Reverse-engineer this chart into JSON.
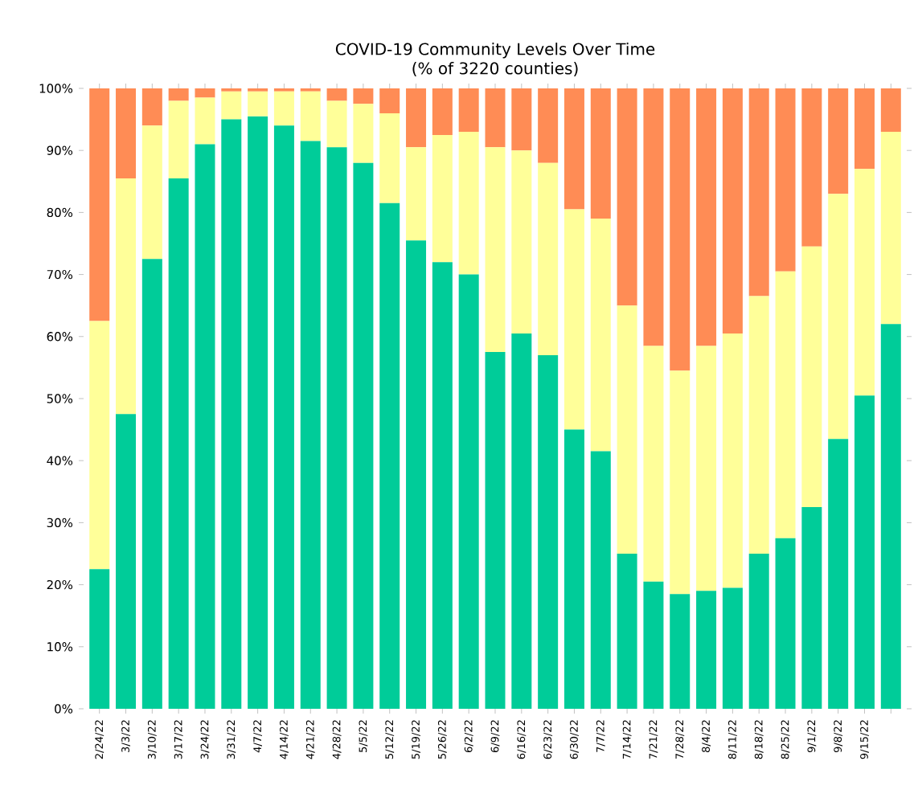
{
  "chart_data": {
    "type": "bar",
    "title": "COVID-19 Community Levels Over Time",
    "subtitle": "(% of 3220 counties)",
    "categories": [
      "2/24/22",
      "3/3/22",
      "3/10/22",
      "3/17/22",
      "3/24/22",
      "3/31/22",
      "4/7/22",
      "4/14/22",
      "4/21/22",
      "4/28/22",
      "5/5/22",
      "5/12/22",
      "5/19/22",
      "5/26/22",
      "6/2/22",
      "6/9/22",
      "6/16/22",
      "6/23/22",
      "6/30/22",
      "7/7/22",
      "7/14/22",
      "7/21/22",
      "7/28/22",
      "8/4/22",
      "8/11/22",
      "8/18/22",
      "8/25/22",
      "9/1/22",
      "9/8/22",
      "9/15/22",
      null
    ],
    "stacked": true,
    "series": [
      {
        "color": "#00cc99",
        "values": [
          22.5,
          47.5,
          72.5,
          85.5,
          91,
          95,
          95.5,
          94,
          91.5,
          90.5,
          88,
          81.5,
          75.5,
          72,
          70,
          57.5,
          60.5,
          57,
          45,
          41.5,
          25,
          20.5,
          18.5,
          19,
          19.5,
          25,
          27.5,
          32.5,
          43.5,
          50.5,
          62
        ]
      },
      {
        "color": "#ffff99",
        "values": [
          40,
          38,
          21.5,
          12.5,
          7.5,
          4.5,
          4,
          5.5,
          8,
          7.5,
          9.5,
          14.5,
          15,
          20.5,
          23,
          33,
          29.5,
          31,
          35.5,
          37.5,
          40,
          38,
          36,
          39.5,
          41,
          41.5,
          43,
          42,
          39.5,
          36.5,
          31
        ]
      },
      {
        "color": "#ff8c55",
        "values": [
          37.5,
          14.5,
          6,
          2,
          1.5,
          0.5,
          0.5,
          0.5,
          0.5,
          2,
          2.5,
          4,
          9.5,
          7.5,
          7,
          9.5,
          10,
          12,
          19.5,
          21,
          35,
          41.5,
          45.5,
          41.5,
          39.5,
          33.5,
          29.5,
          25.5,
          17,
          13,
          7
        ]
      }
    ],
    "ylim": [
      0,
      100
    ],
    "yticks": [
      {
        "value": 0,
        "label": "0%"
      },
      {
        "value": 10,
        "label": "10%"
      },
      {
        "value": 20,
        "label": "20%"
      },
      {
        "value": 30,
        "label": "30%"
      },
      {
        "value": 40,
        "label": "40%"
      },
      {
        "value": 50,
        "label": "50%"
      },
      {
        "value": 60,
        "label": "60%"
      },
      {
        "value": 70,
        "label": "70%"
      },
      {
        "value": 80,
        "label": "80%"
      },
      {
        "value": 90,
        "label": "90%"
      },
      {
        "value": 100,
        "label": "100%"
      }
    ]
  }
}
